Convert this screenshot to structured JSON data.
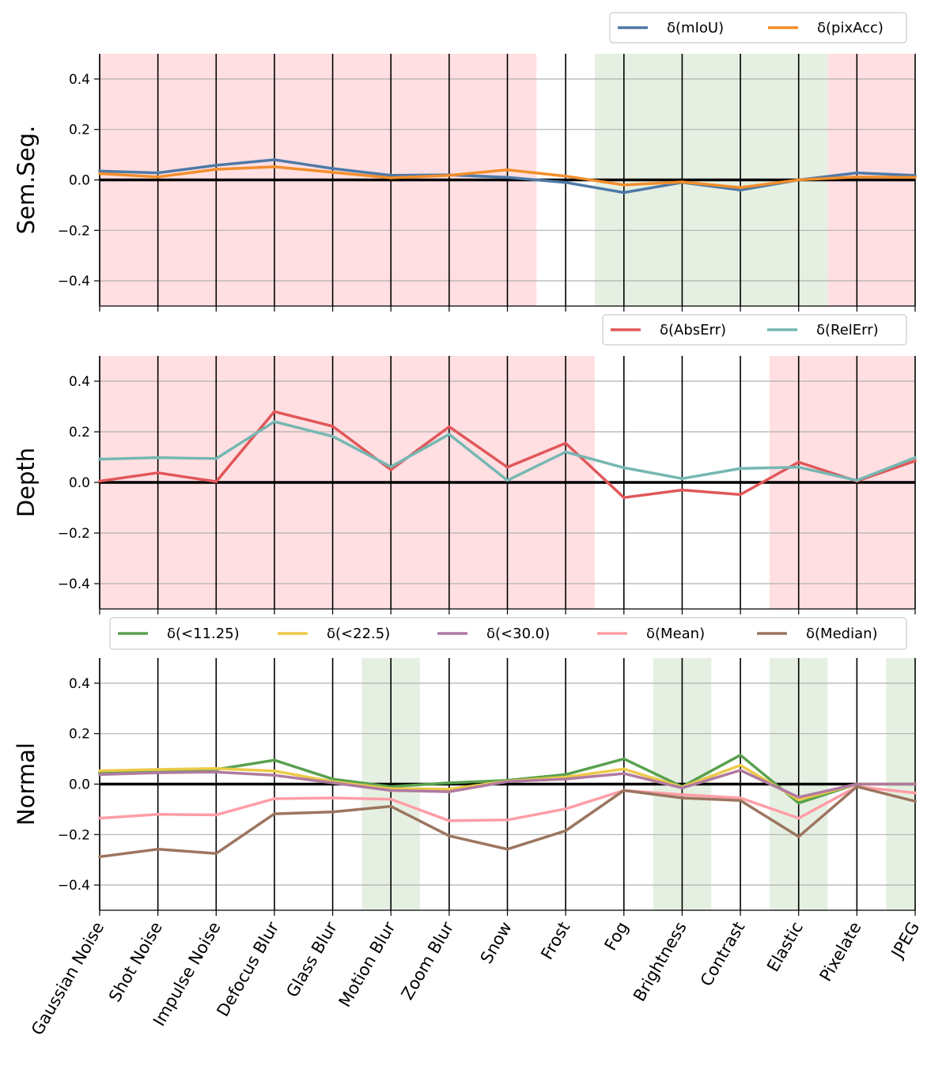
{
  "chart_data": [
    {
      "type": "line",
      "ylabel": "Sem.Seg.",
      "ylim": [
        -0.5,
        0.5
      ],
      "yticks": [
        -0.4,
        -0.2,
        0.0,
        0.2,
        0.4
      ],
      "ytick_labels": [
        "−0.4",
        "−0.2",
        "0.0",
        "0.2",
        "0.4"
      ],
      "categories": [
        "Gaussian Noise",
        "Shot Noise",
        "Impulse Noise",
        "Defocus Blur",
        "Glass Blur",
        "Motion Blur",
        "Zoom Blur",
        "Snow",
        "Frost",
        "Fog",
        "Brightness",
        "Contrast",
        "Elastic",
        "Pixelate",
        "JPEG"
      ],
      "legend_position": "top-right, above plot",
      "series": [
        {
          "name": "δ(mIoU)",
          "color": "#4e79a7",
          "values": [
            0.035,
            0.028,
            0.058,
            0.08,
            0.045,
            0.018,
            0.02,
            0.01,
            -0.01,
            -0.05,
            -0.01,
            -0.04,
            0.0,
            0.028,
            0.018
          ]
        },
        {
          "name": "δ(pixAcc)",
          "color": "#f28e2b",
          "values": [
            0.025,
            0.012,
            0.042,
            0.052,
            0.03,
            0.008,
            0.018,
            0.04,
            0.015,
            -0.02,
            -0.008,
            -0.03,
            0.0,
            0.012,
            0.01
          ]
        }
      ],
      "shading": [
        {
          "from": 0,
          "to": 7.5,
          "color": "red"
        },
        {
          "from": 8.5,
          "to": 12.5,
          "color": "green"
        },
        {
          "from": 12.5,
          "to": 14,
          "color": "red"
        }
      ]
    },
    {
      "type": "line",
      "ylabel": "Depth",
      "ylim": [
        -0.5,
        0.5
      ],
      "yticks": [
        -0.4,
        -0.2,
        0.0,
        0.2,
        0.4
      ],
      "ytick_labels": [
        "−0.4",
        "−0.2",
        "0.0",
        "0.2",
        "0.4"
      ],
      "categories": [
        "Gaussian Noise",
        "Shot Noise",
        "Impulse Noise",
        "Defocus Blur",
        "Glass Blur",
        "Motion Blur",
        "Zoom Blur",
        "Snow",
        "Frost",
        "Fog",
        "Brightness",
        "Contrast",
        "Elastic",
        "Pixelate",
        "JPEG"
      ],
      "legend_position": "top-right, above plot",
      "series": [
        {
          "name": "δ(AbsErr)",
          "color": "#e15759",
          "values": [
            0.005,
            0.038,
            0.003,
            0.28,
            0.222,
            0.05,
            0.22,
            0.06,
            0.155,
            -0.06,
            -0.03,
            -0.048,
            0.08,
            0.005,
            0.085
          ]
        },
        {
          "name": "δ(RelErr)",
          "color": "#76b7b2",
          "values": [
            0.092,
            0.098,
            0.094,
            0.24,
            0.182,
            0.062,
            0.19,
            0.008,
            0.12,
            0.058,
            0.015,
            0.055,
            0.06,
            0.008,
            0.098
          ]
        }
      ],
      "shading": [
        {
          "from": 0,
          "to": 8.5,
          "color": "red"
        },
        {
          "from": 11.5,
          "to": 14,
          "color": "red"
        }
      ]
    },
    {
      "type": "line",
      "ylabel": "Normal",
      "ylim": [
        -0.5,
        0.5
      ],
      "yticks": [
        -0.4,
        -0.2,
        0.0,
        0.2,
        0.4
      ],
      "ytick_labels": [
        "−0.4",
        "−0.2",
        "0.0",
        "0.2",
        "0.4"
      ],
      "categories": [
        "Gaussian Noise",
        "Shot Noise",
        "Impulse Noise",
        "Defocus Blur",
        "Glass Blur",
        "Motion Blur",
        "Zoom Blur",
        "Snow",
        "Frost",
        "Fog",
        "Brightness",
        "Contrast",
        "Elastic",
        "Pixelate",
        "JPEG"
      ],
      "legend_position": "top, above plot",
      "series": [
        {
          "name": "δ(<11.25)",
          "color": "#59a14f",
          "values": [
            0.045,
            0.052,
            0.058,
            0.095,
            0.02,
            -0.01,
            0.005,
            0.015,
            0.038,
            0.1,
            -0.01,
            0.115,
            -0.075,
            0.0,
            0.0
          ]
        },
        {
          "name": "δ(<22.5)",
          "color": "#edc948",
          "values": [
            0.053,
            0.058,
            0.062,
            0.052,
            0.01,
            -0.018,
            -0.02,
            0.012,
            0.028,
            0.06,
            -0.012,
            0.075,
            -0.062,
            0.0,
            0.0
          ]
        },
        {
          "name": "δ(<30.0)",
          "color": "#b07aa1",
          "values": [
            0.038,
            0.045,
            0.048,
            0.035,
            0.005,
            -0.025,
            -0.03,
            0.01,
            0.02,
            0.042,
            -0.015,
            0.055,
            -0.052,
            0.0,
            0.0
          ]
        },
        {
          "name": "δ(Mean)",
          "color": "#ff9da7",
          "values": [
            -0.135,
            -0.12,
            -0.122,
            -0.058,
            -0.055,
            -0.06,
            -0.145,
            -0.142,
            -0.098,
            -0.025,
            -0.042,
            -0.055,
            -0.135,
            -0.01,
            -0.035
          ]
        },
        {
          "name": "δ(Median)",
          "color": "#9c755f",
          "values": [
            -0.288,
            -0.258,
            -0.275,
            -0.118,
            -0.11,
            -0.088,
            -0.205,
            -0.258,
            -0.185,
            -0.025,
            -0.055,
            -0.065,
            -0.208,
            -0.01,
            -0.068
          ]
        }
      ],
      "shading": [
        {
          "from": 4.5,
          "to": 5.5,
          "color": "green"
        },
        {
          "from": 9.5,
          "to": 10.5,
          "color": "green"
        },
        {
          "from": 11.5,
          "to": 12.5,
          "color": "green"
        },
        {
          "from": 13.5,
          "to": 14,
          "color": "green"
        }
      ]
    }
  ]
}
